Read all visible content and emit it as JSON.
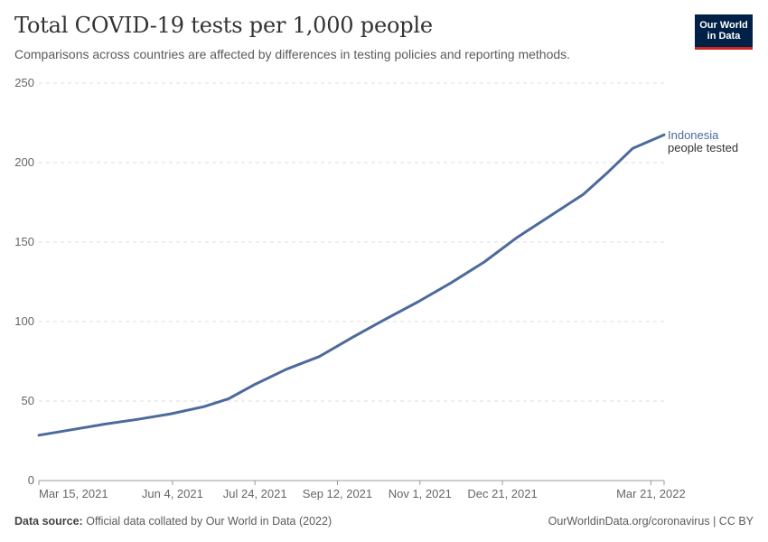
{
  "header": {
    "title": "Total COVID-19 tests per 1,000 people",
    "subtitle": "Comparisons across countries are affected by differences in testing policies and reporting methods.",
    "logo_line1": "Our World",
    "logo_line2": "in Data"
  },
  "footer": {
    "source_label": "Data source:",
    "source_text": "Official data collated by Our World in Data (2022)",
    "credit": "OurWorldinData.org/coronavirus | CC BY"
  },
  "colors": {
    "series": "#4c6a9c",
    "grid": "#dddddd",
    "axis": "#999999"
  },
  "chart_data": {
    "type": "line",
    "title": "Total COVID-19 tests per 1,000 people",
    "xlabel": "",
    "ylabel": "",
    "x_start": "2021-03-15",
    "x_end": "2022-03-29",
    "ylim": [
      0,
      250
    ],
    "yticks": [
      0,
      50,
      100,
      150,
      200,
      250
    ],
    "xticks": [
      {
        "day": 0,
        "label": "Mar 15, 2021"
      },
      {
        "day": 81,
        "label": "Jun 4, 2021"
      },
      {
        "day": 131,
        "label": "Jul 24, 2021"
      },
      {
        "day": 181,
        "label": "Sep 12, 2021"
      },
      {
        "day": 231,
        "label": "Nov 1, 2021"
      },
      {
        "day": 281,
        "label": "Dec 21, 2021"
      },
      {
        "day": 371,
        "label": "Mar 21, 2022"
      }
    ],
    "grid": true,
    "series": [
      {
        "name": "Indonesia",
        "annotation": "people tested",
        "days": [
          0,
          20,
          40,
          60,
          80,
          100,
          115,
          130,
          150,
          170,
          190,
          210,
          230,
          250,
          270,
          290,
          310,
          330,
          345,
          360,
          379
        ],
        "values": [
          28.5,
          32,
          35.5,
          38.5,
          42,
          46.5,
          51.5,
          60,
          70,
          78,
          90,
          101.5,
          112.5,
          124.5,
          137.5,
          153,
          166.5,
          180,
          194,
          209,
          217.5
        ]
      }
    ]
  }
}
